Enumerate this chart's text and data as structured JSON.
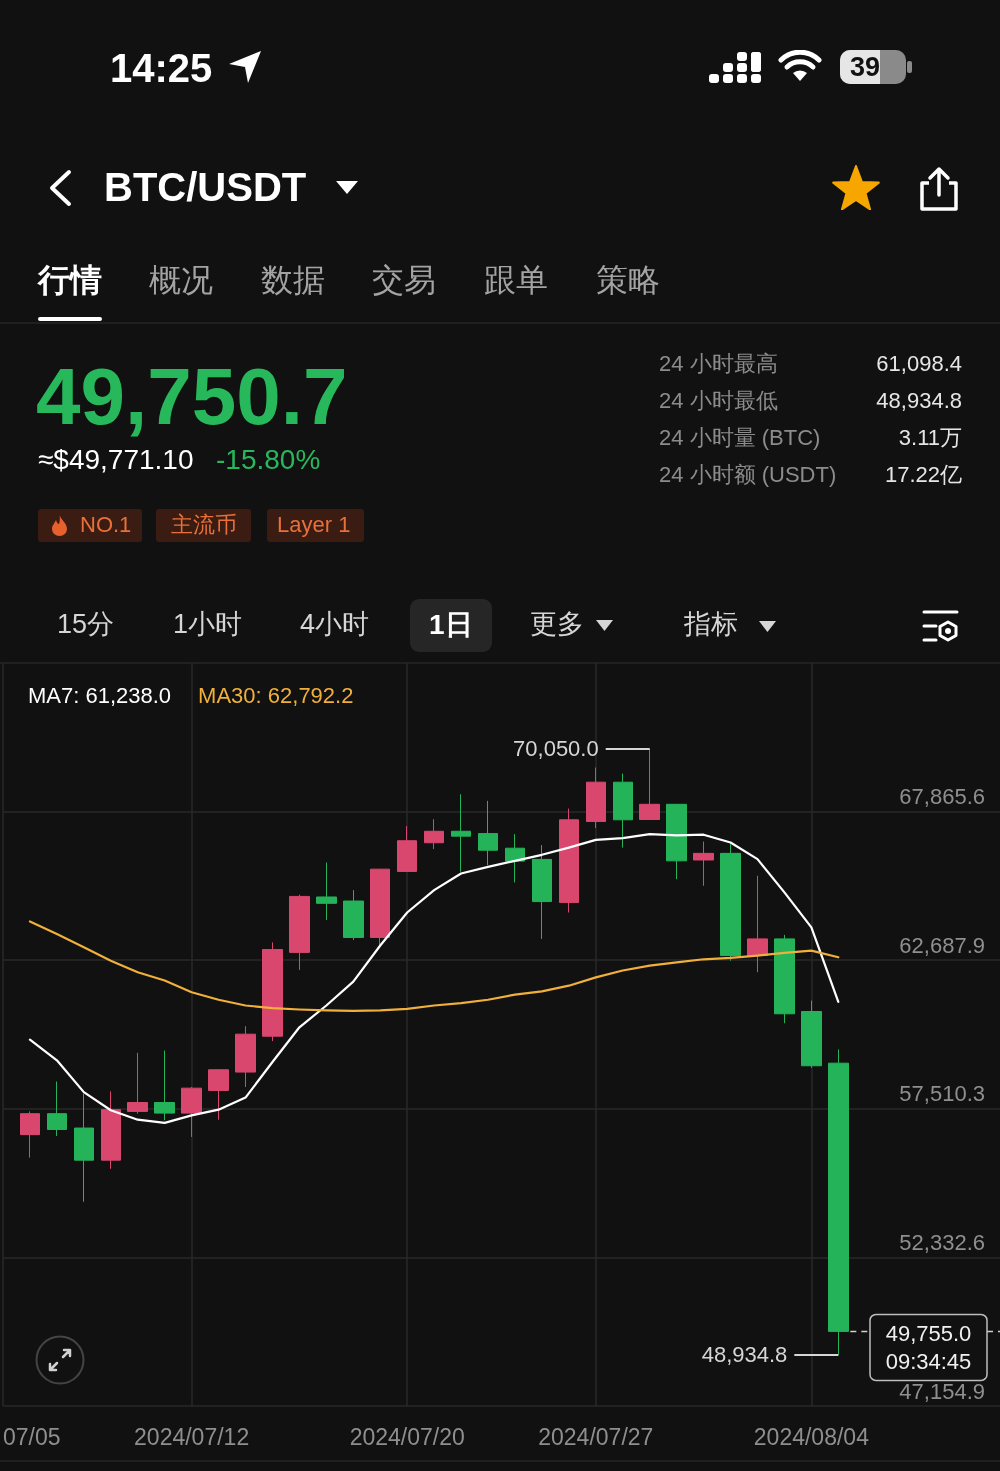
{
  "chart_data": {
    "type": "candlestick",
    "title": "BTC/USDT",
    "x": [
      "2024-07-06",
      "2024-07-07",
      "2024-07-08",
      "2024-07-09",
      "2024-07-10",
      "2024-07-11",
      "2024-07-12",
      "2024-07-13",
      "2024-07-14",
      "2024-07-15",
      "2024-07-16",
      "2024-07-17",
      "2024-07-18",
      "2024-07-19",
      "2024-07-20",
      "2024-07-21",
      "2024-07-22",
      "2024-07-23",
      "2024-07-24",
      "2024-07-25",
      "2024-07-26",
      "2024-07-27",
      "2024-07-28",
      "2024-07-29",
      "2024-07-30",
      "2024-07-31",
      "2024-08-01",
      "2024-08-02",
      "2024-08-03",
      "2024-08-04",
      "2024-08-05"
    ],
    "ohlc": [
      [
        56610,
        57420,
        55810,
        57340
      ],
      [
        57340,
        58460,
        56560,
        56790
      ],
      [
        56840,
        58040,
        54270,
        55720
      ],
      [
        55720,
        58120,
        55420,
        57480
      ],
      [
        57420,
        59460,
        57340,
        57730
      ],
      [
        57730,
        59540,
        57110,
        57360
      ],
      [
        57360,
        58270,
        56530,
        58230
      ],
      [
        58150,
        58890,
        57130,
        58870
      ],
      [
        58790,
        60390,
        58270,
        60110
      ],
      [
        60040,
        63310,
        59870,
        63060
      ],
      [
        62960,
        64970,
        62350,
        64910
      ],
      [
        64890,
        66090,
        64090,
        64670
      ],
      [
        64750,
        65130,
        63390,
        63480
      ],
      [
        63480,
        65870,
        63220,
        65860
      ],
      [
        65780,
        67360,
        65780,
        66850
      ],
      [
        66780,
        67600,
        66560,
        67180
      ],
      [
        67180,
        68470,
        65770,
        67010
      ],
      [
        67100,
        68240,
        66000,
        66520
      ],
      [
        66590,
        67080,
        65400,
        66140
      ],
      [
        66200,
        66700,
        63430,
        64730
      ],
      [
        64700,
        67970,
        64350,
        67580
      ],
      [
        67520,
        69400,
        67290,
        68890
      ],
      [
        68890,
        69190,
        66610,
        67580
      ],
      [
        67590,
        70050.0,
        67590,
        68120
      ],
      [
        68120,
        68120,
        65510,
        66150
      ],
      [
        66180,
        66820,
        65280,
        66410
      ],
      [
        66410,
        66730,
        62670,
        62850
      ],
      [
        62850,
        65630,
        62270,
        63430
      ],
      [
        63430,
        63570,
        60490,
        60820
      ],
      [
        60900,
        61280,
        58940,
        59010
      ],
      [
        59100,
        59580,
        48934.8,
        49755.0
      ]
    ],
    "colors": [
      "#d9476f",
      "#25b35a",
      "#25b35a",
      "#d9476f",
      "#d9476f",
      "#25b35a",
      "#d9476f",
      "#d9476f",
      "#d9476f",
      "#d9476f",
      "#d9476f",
      "#25b35a",
      "#25b35a",
      "#d9476f",
      "#d9476f",
      "#d9476f",
      "#25b35a",
      "#25b35a",
      "#25b35a",
      "#25b35a",
      "#d9476f",
      "#d9476f",
      "#25b35a",
      "#d9476f",
      "#25b35a",
      "#d9476f",
      "#25b35a",
      "#d9476f",
      "#25b35a",
      "#25b35a",
      "#25b35a"
    ],
    "series": [
      {
        "name": "MA7: 61,238.0",
        "type": "line",
        "color": "#ffffff",
        "values": [
          59920,
          59200,
          58090,
          57460,
          57130,
          57020,
          57280,
          57480,
          57900,
          59140,
          60350,
          61110,
          61940,
          63200,
          64350,
          65130,
          65710,
          65940,
          66150,
          66360,
          66610,
          66880,
          66940,
          67080,
          67040,
          67060,
          66790,
          66210,
          65050,
          63830,
          61240
        ]
      },
      {
        "name": "MA30: 62,792.2",
        "type": "line",
        "color": "#f0b03a",
        "values": [
          64040,
          63600,
          63140,
          62670,
          62270,
          61980,
          61570,
          61310,
          61110,
          61020,
          60970,
          60940,
          60920,
          60940,
          60990,
          61110,
          61190,
          61310,
          61490,
          61600,
          61800,
          62090,
          62330,
          62500,
          62610,
          62720,
          62770,
          62850,
          62940,
          63020,
          62790
        ]
      }
    ],
    "xlim": [
      "2024-07-05",
      "2024-08-11"
    ],
    "xticks": [
      {
        "value": "2024-07-05",
        "label": "07/05"
      },
      {
        "value": "2024-07-12",
        "label": "2024/07/12"
      },
      {
        "value": "2024-07-20",
        "label": "2024/07/20"
      },
      {
        "value": "2024-07-27",
        "label": "2024/07/27"
      },
      {
        "value": "2024-08-04",
        "label": "2024/08/04"
      }
    ],
    "ylim": [
      47154.9,
      73043.2
    ],
    "yticks": [
      {
        "value": 47154.9,
        "label": "47,154.9"
      },
      {
        "value": 52332.6,
        "label": "52,332.6"
      },
      {
        "value": 57510.3,
        "label": "57,510.3"
      },
      {
        "value": 62687.9,
        "label": "62,687.9"
      },
      {
        "value": 67865.6,
        "label": "67,865.6"
      }
    ],
    "grid": true,
    "legend": "top left",
    "marker": "none",
    "ref_lines": [
      {
        "axis": "y",
        "value": 49755.0,
        "label": "49,755.0\n09:34:45",
        "line_style": "dashed"
      }
    ],
    "annotations": [
      "14:25",
      "39",
      "行情",
      "概况",
      "数据",
      "交易",
      "跟单",
      "策略",
      "49,750.7",
      "≈$49,771.10",
      "-15.80%",
      "NO.1",
      "主流币",
      "Layer 1",
      "24 小时最高",
      "61,098.4",
      "24 小时最低",
      "48,934.8",
      "24 小时量 (BTC)",
      "3.11万",
      "24 小时额 (USDT)",
      "17.22亿",
      "15分",
      "1小时",
      "4小时",
      "1日",
      "更多",
      "指标",
      {
        "text": "70,050.0",
        "x": "2024-07-29",
        "y": 70050.0
      },
      {
        "text": "48,934.8",
        "x": "2024-08-05",
        "y": 48934.8
      }
    ]
  }
}
